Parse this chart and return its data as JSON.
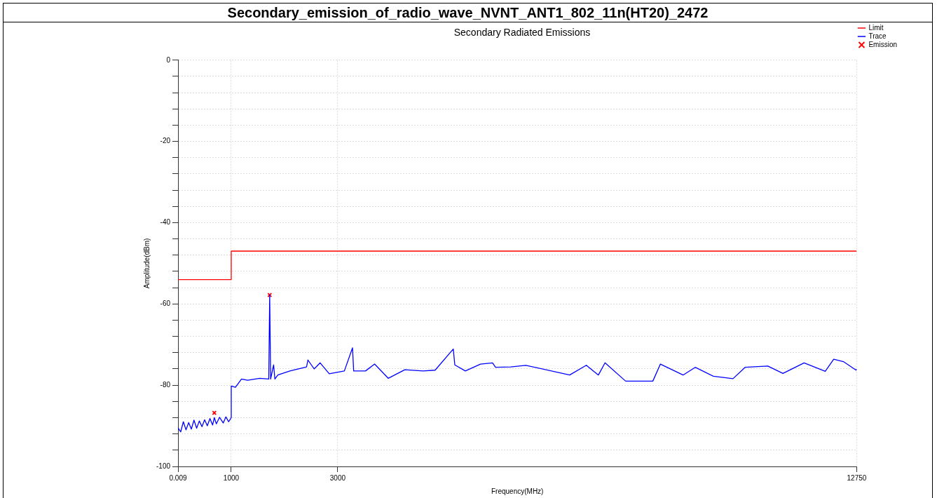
{
  "chart_data": {
    "type": "line",
    "title": "Secondary_emission_of_radio_wave_NVNT_ANT1_802_11n(HT20)_2472",
    "subtitle": "Secondary Radiated Emissions",
    "xlabel": "Frequency(MHz)",
    "ylabel": "Amplitude(dBm)",
    "xlim": [
      0.009,
      12750
    ],
    "xticks": [
      0.009,
      1000,
      3000,
      12750
    ],
    "ylim": [
      -100,
      0
    ],
    "yticks": [
      0,
      {
        "value": -4,
        "label": null
      },
      {
        "value": -8,
        "label": null
      },
      {
        "value": -12,
        "label": null
      },
      {
        "value": -16,
        "label": null
      },
      -20,
      {
        "value": -24,
        "label": null
      },
      {
        "value": -28,
        "label": null
      },
      {
        "value": -32,
        "label": null
      },
      {
        "value": -36,
        "label": null
      },
      -40,
      {
        "value": -44,
        "label": null
      },
      {
        "value": -48,
        "label": null
      },
      {
        "value": -52,
        "label": null
      },
      {
        "value": -56,
        "label": null
      },
      -60,
      {
        "value": -64,
        "label": null
      },
      {
        "value": -68,
        "label": null
      },
      {
        "value": -72,
        "label": null
      },
      {
        "value": -76,
        "label": null
      },
      -80,
      {
        "value": -84,
        "label": null
      },
      {
        "value": -88,
        "label": null
      },
      {
        "value": -92,
        "label": null
      },
      {
        "value": -96,
        "label": null
      },
      -100
    ],
    "grid": true,
    "legend": "top right",
    "line_style": "solid",
    "marker": "none",
    "series": [
      {
        "name": "Limit",
        "color": "#ff0000",
        "x": [
          0.009,
          1000,
          1000,
          12750
        ],
        "values": [
          -54,
          -54,
          -47,
          -47
        ]
      },
      {
        "name": "Trace",
        "color": "#0000ff",
        "x": [
          0.009,
          50,
          100,
          150,
          200,
          250,
          300,
          350,
          400,
          450,
          500,
          550,
          600,
          650,
          682,
          720,
          780,
          850,
          900,
          950,
          1000,
          1000,
          1079,
          1193,
          1307,
          1534,
          1705,
          1722,
          1740,
          1796,
          1820,
          1875,
          2102,
          2415,
          2440,
          2557,
          2670,
          2841,
          3125,
          3278,
          3300,
          3523,
          3693,
          3949,
          4261,
          4602,
          4830,
          5171,
          5200,
          5398,
          5682,
          5909,
          5965,
          6250,
          6534,
          7358,
          7670,
          7897,
          8022,
          8409,
          8920,
          9062,
          9488,
          9716,
          10057,
          10426,
          10653,
          11080,
          11364,
          11762,
          12159,
          12318,
          12500,
          12739,
          12750
        ],
        "values": [
          -90.5,
          -91.5,
          -89.0,
          -91.0,
          -89.2,
          -90.8,
          -88.6,
          -90.6,
          -88.8,
          -90.2,
          -88.5,
          -90.0,
          -88.2,
          -89.8,
          -88.0,
          -89.5,
          -87.9,
          -89.3,
          -87.8,
          -89.0,
          -88.0,
          -80.2,
          -80.5,
          -78.5,
          -78.8,
          -78.3,
          -78.5,
          -57.8,
          -78.5,
          -75.0,
          -78.5,
          -77.5,
          -76.5,
          -75.5,
          -73.8,
          -76.0,
          -74.5,
          -77.2,
          -76.5,
          -70.8,
          -76.5,
          -76.5,
          -74.8,
          -78.3,
          -76.2,
          -76.5,
          -76.3,
          -71.1,
          -75.0,
          -76.5,
          -74.8,
          -74.5,
          -75.6,
          -75.5,
          -75.1,
          -77.5,
          -75.1,
          -77.5,
          -74.5,
          -79.0,
          -79.0,
          -74.8,
          -77.5,
          -75.6,
          -77.8,
          -78.4,
          -75.6,
          -75.3,
          -77.1,
          -74.5,
          -76.6,
          -73.6,
          -74.2,
          -76.3,
          -76.0
        ]
      },
      {
        "name": "Emission",
        "type": "scatter",
        "marker": "cross",
        "color": "#ff0000",
        "x": [
          682,
          1722
        ],
        "values": [
          -86.8,
          -57.8
        ]
      }
    ]
  }
}
